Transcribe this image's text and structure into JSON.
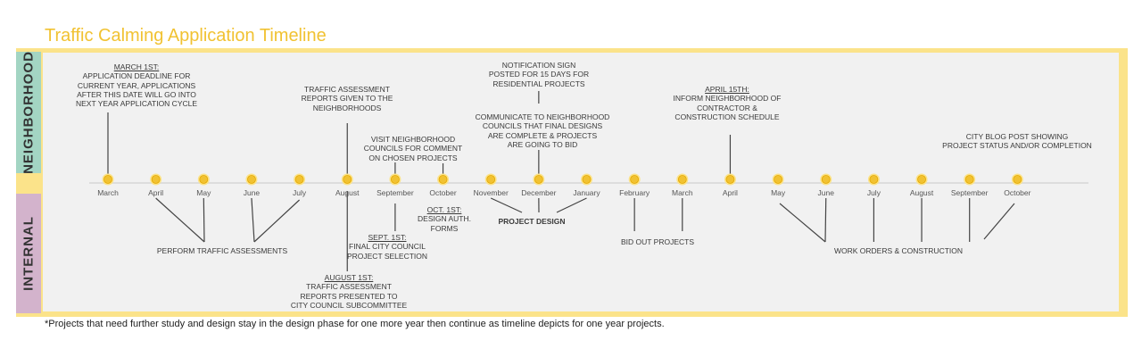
{
  "title": "Traffic Calming Application Timeline",
  "bands": {
    "neighborhood": "NEIGHBORHOOD",
    "internal": "INTERNAL"
  },
  "colors": {
    "title": "#f1c232",
    "frame": "#fbe38a",
    "panel": "#f1f1f1",
    "neighborhood_band": "#a3d5c3",
    "internal_band": "#d3b3cc",
    "marker_fill": "#f1c232",
    "marker_ring": "#fbe38a",
    "line": "#444444"
  },
  "timeline": {
    "months": [
      "March",
      "April",
      "May",
      "June",
      "July",
      "August",
      "September",
      "October",
      "November",
      "December",
      "January",
      "February",
      "March",
      "April",
      "May",
      "June",
      "July",
      "August",
      "September",
      "October"
    ]
  },
  "neighborhood_notes": [
    {
      "id": "application-deadline",
      "month_index": 0,
      "date": "MARCH 1ST:",
      "lines": "APPLICATION DEADLINE FOR\nCURRENT YEAR, APPLICATIONS\nAFTER THIS DATE WILL GO INTO\nNEXT YEAR APPLICATION CYCLE"
    },
    {
      "id": "assessment-reports-given",
      "month_index": 5,
      "date": "",
      "lines": "TRAFFIC ASSESSMENT\nREPORTS GIVEN TO THE\nNEIGHBORHOODS"
    },
    {
      "id": "visit-councils",
      "month_index": 6,
      "date": "",
      "lines": "VISIT NEIGHBORHOOD\nCOUNCILS FOR COMMENT\nON CHOSEN PROJECTS"
    },
    {
      "id": "notification-sign",
      "month_index": 9,
      "date": "",
      "lines": "NOTIFICATION SIGN\nPOSTED FOR 15 DAYS FOR\nRESIDENTIAL PROJECTS"
    },
    {
      "id": "communicate-designs",
      "month_index": 9,
      "date": "",
      "lines": "COMMUNICATE TO NEIGHBORHOOD\nCOUNCILS THAT FINAL DESIGNS\nARE COMPLETE & PROJECTS\nARE GOING TO BID"
    },
    {
      "id": "inform-contractor",
      "month_index": 13,
      "date": "APRIL 15TH:",
      "lines": "INFORM NEIGHBORHOOD OF\nCONTRACTOR &\nCONSTRUCTION SCHEDULE"
    },
    {
      "id": "city-blog-post",
      "month_index": 19,
      "date": "",
      "lines": "CITY BLOG POST SHOWING\nPROJECT STATUS AND/OR COMPLETION"
    }
  ],
  "internal_notes": [
    {
      "id": "august-first",
      "month_index": 5,
      "date": "AUGUST 1ST:",
      "lines": "TRAFFIC ASSESSMENT\nREPORTS PRESENTED TO\nCITY COUNCIL SUBCOMMITTEE"
    },
    {
      "id": "sept-first",
      "month_index": 6,
      "date": "SEPT. 1ST:",
      "lines": "FINAL CITY COUNCIL\nPROJECT SELECTION"
    },
    {
      "id": "oct-first",
      "month_index": 7,
      "date": "OCT. 1ST:",
      "lines": "DESIGN AUTH.\nFORMS"
    }
  ],
  "internal_groups": [
    {
      "id": "perform-assessments",
      "label": "PERFORM TRAFFIC ASSESSMENTS",
      "bold": false,
      "months": [
        1,
        2,
        3,
        4
      ]
    },
    {
      "id": "project-design",
      "label": "PROJECT DESIGN",
      "bold": true,
      "months": [
        8,
        9,
        10
      ]
    },
    {
      "id": "bid-out",
      "label": "BID OUT PROJECTS",
      "bold": false,
      "months": [
        11,
        12
      ]
    },
    {
      "id": "work-orders",
      "label": "WORK ORDERS & CONSTRUCTION",
      "bold": false,
      "months": [
        14,
        15,
        16,
        17,
        18,
        19
      ]
    }
  ],
  "footnote": "*Projects that need further study and design stay in the design phase for one more year then continue as timeline depicts for one year projects."
}
